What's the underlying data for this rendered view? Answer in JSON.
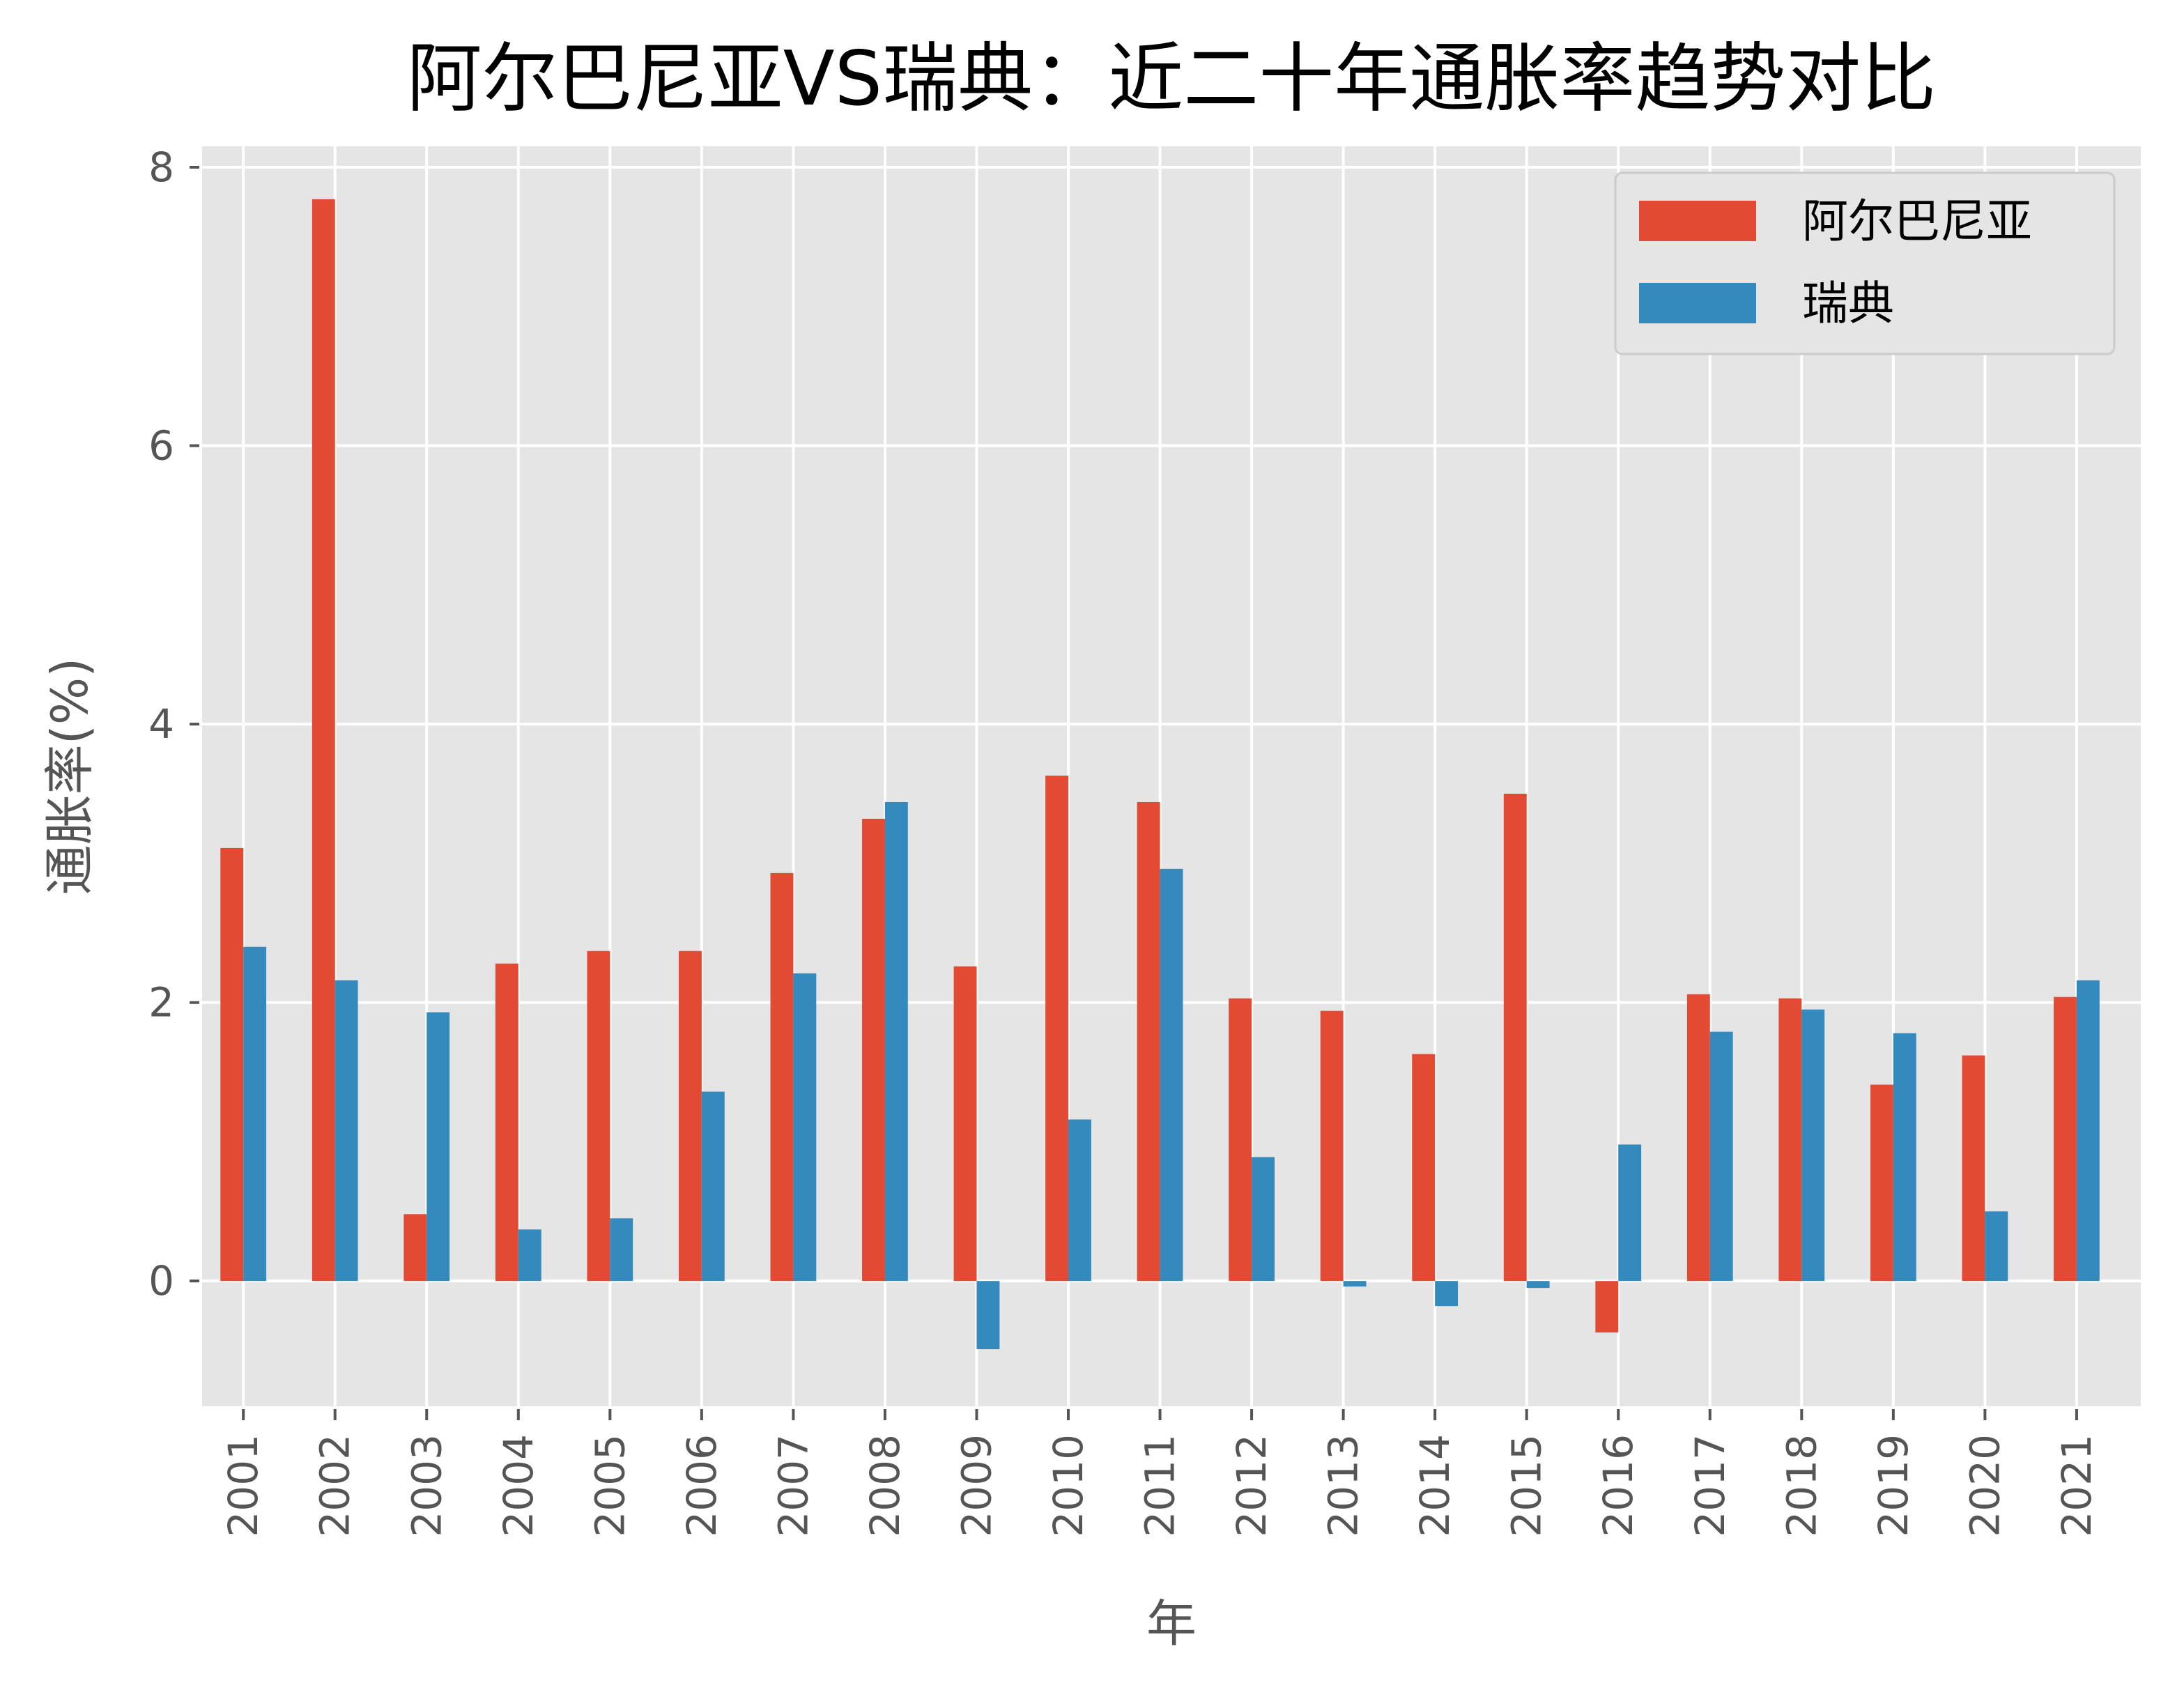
{
  "chart_data": {
    "type": "bar",
    "title": "阿尔巴尼亚VS瑞典：近二十年通胀率趋势对比",
    "xlabel": "年",
    "ylabel": "通胀率(%)",
    "ylim": [
      -0.9,
      8.15
    ],
    "yticks": [
      0,
      2,
      4,
      6,
      8
    ],
    "ytick_labels": [
      "0",
      "2",
      "4",
      "6",
      "8"
    ],
    "grid": true,
    "legend_position": "top-right",
    "categories": [
      "2001",
      "2002",
      "2003",
      "2004",
      "2005",
      "2006",
      "2007",
      "2008",
      "2009",
      "2010",
      "2011",
      "2012",
      "2013",
      "2014",
      "2015",
      "2016",
      "2017",
      "2018",
      "2019",
      "2020",
      "2021"
    ],
    "series": [
      {
        "name": "阿尔巴尼亚",
        "color": "#E24A33",
        "values": [
          3.11,
          7.77,
          0.48,
          2.28,
          2.37,
          2.37,
          2.93,
          3.32,
          2.26,
          3.63,
          3.44,
          2.03,
          1.94,
          1.63,
          3.5,
          -0.37,
          2.06,
          2.03,
          1.41,
          1.62,
          2.04
        ]
      },
      {
        "name": "瑞典",
        "color": "#348ABD",
        "values": [
          2.4,
          2.16,
          1.93,
          0.37,
          0.45,
          1.36,
          2.21,
          3.44,
          -0.49,
          1.16,
          2.96,
          0.89,
          -0.04,
          -0.18,
          -0.05,
          0.98,
          1.79,
          1.95,
          1.78,
          0.5,
          2.16
        ]
      }
    ]
  }
}
